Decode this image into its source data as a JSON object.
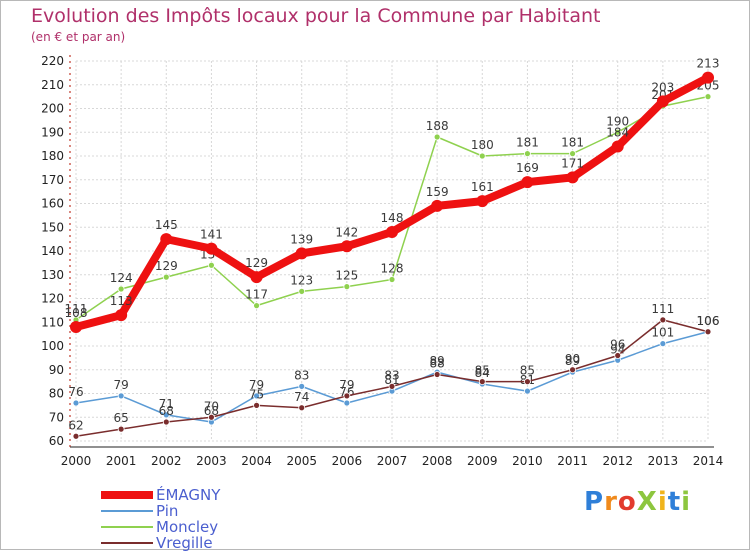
{
  "chart_data": {
    "type": "line",
    "title": "Evolution des Impôts locaux pour la Commune par Habitant",
    "subtitle": "(en € et par an)",
    "xlabel": "",
    "ylabel": "",
    "x": [
      "2000",
      "2001",
      "2002",
      "2003",
      "2004",
      "2005",
      "2006",
      "2007",
      "2008",
      "2009",
      "2010",
      "2011",
      "2012",
      "2013",
      "2014"
    ],
    "ylim": [
      60,
      220
    ],
    "yticks": [
      60,
      70,
      80,
      90,
      100,
      110,
      120,
      130,
      140,
      150,
      160,
      170,
      180,
      190,
      200,
      210,
      220
    ],
    "grid": true,
    "legend_position": "bottom-left",
    "series": [
      {
        "name": "Pin",
        "color": "#5b9bd5",
        "values": [
          76,
          79,
          71,
          68,
          79,
          83,
          76,
          81,
          89,
          84,
          81,
          89,
          94,
          101,
          106
        ],
        "labels": [
          "76",
          "79",
          "71",
          "68",
          "79",
          "83",
          "76",
          "81",
          "89",
          "84",
          "81",
          "89",
          "94",
          "101",
          "106"
        ]
      },
      {
        "name": "Moncley",
        "color": "#8fd14f",
        "values": [
          111,
          124,
          129,
          134,
          117,
          123,
          125,
          128,
          188,
          180,
          181,
          181,
          190,
          201,
          205
        ],
        "labels": [
          "111",
          "124",
          "129",
          "134",
          "117",
          "123",
          "125",
          "128",
          "188",
          "180",
          "181",
          "181",
          "190",
          "201",
          "205"
        ]
      },
      {
        "name": "Vregille",
        "color": "#7a2d2d",
        "values": [
          62,
          65,
          68,
          70,
          75,
          74,
          79,
          83,
          88,
          85,
          85,
          90,
          96,
          111,
          106
        ],
        "labels": [
          "62",
          "65",
          "68",
          "70",
          "75",
          "74",
          "79",
          "83",
          "88",
          "85",
          "85",
          "90",
          "96",
          "111",
          "106"
        ]
      },
      {
        "name": "ÉMAGNY",
        "color": "#ee1111",
        "values": [
          108,
          113,
          145,
          141,
          129,
          139,
          142,
          148,
          159,
          161,
          169,
          171,
          184,
          203,
          213
        ],
        "labels": [
          "108",
          "113",
          "145",
          "141",
          "129",
          "139",
          "142",
          "148",
          "159",
          "161",
          "169",
          "171",
          "184",
          "203",
          "213"
        ]
      }
    ]
  },
  "legend": {
    "items": [
      {
        "label": "ÉMAGNY",
        "color": "#ee1111"
      },
      {
        "label": "Pin",
        "color": "#5b9bd5"
      },
      {
        "label": "Moncley",
        "color": "#8fd14f"
      },
      {
        "label": "Vregille",
        "color": "#7a2d2d"
      }
    ]
  },
  "brand": {
    "letters": [
      {
        "ch": "P",
        "color": "#2f7fd8"
      },
      {
        "ch": "r",
        "color": "#f08a1c"
      },
      {
        "ch": "o",
        "color": "#e23b2e"
      },
      {
        "ch": "X",
        "color": "#8dc63f"
      },
      {
        "ch": "i",
        "color": "#f0b41c"
      },
      {
        "ch": "t",
        "color": "#2f7fd8"
      },
      {
        "ch": "i",
        "color": "#8dc63f"
      }
    ]
  }
}
